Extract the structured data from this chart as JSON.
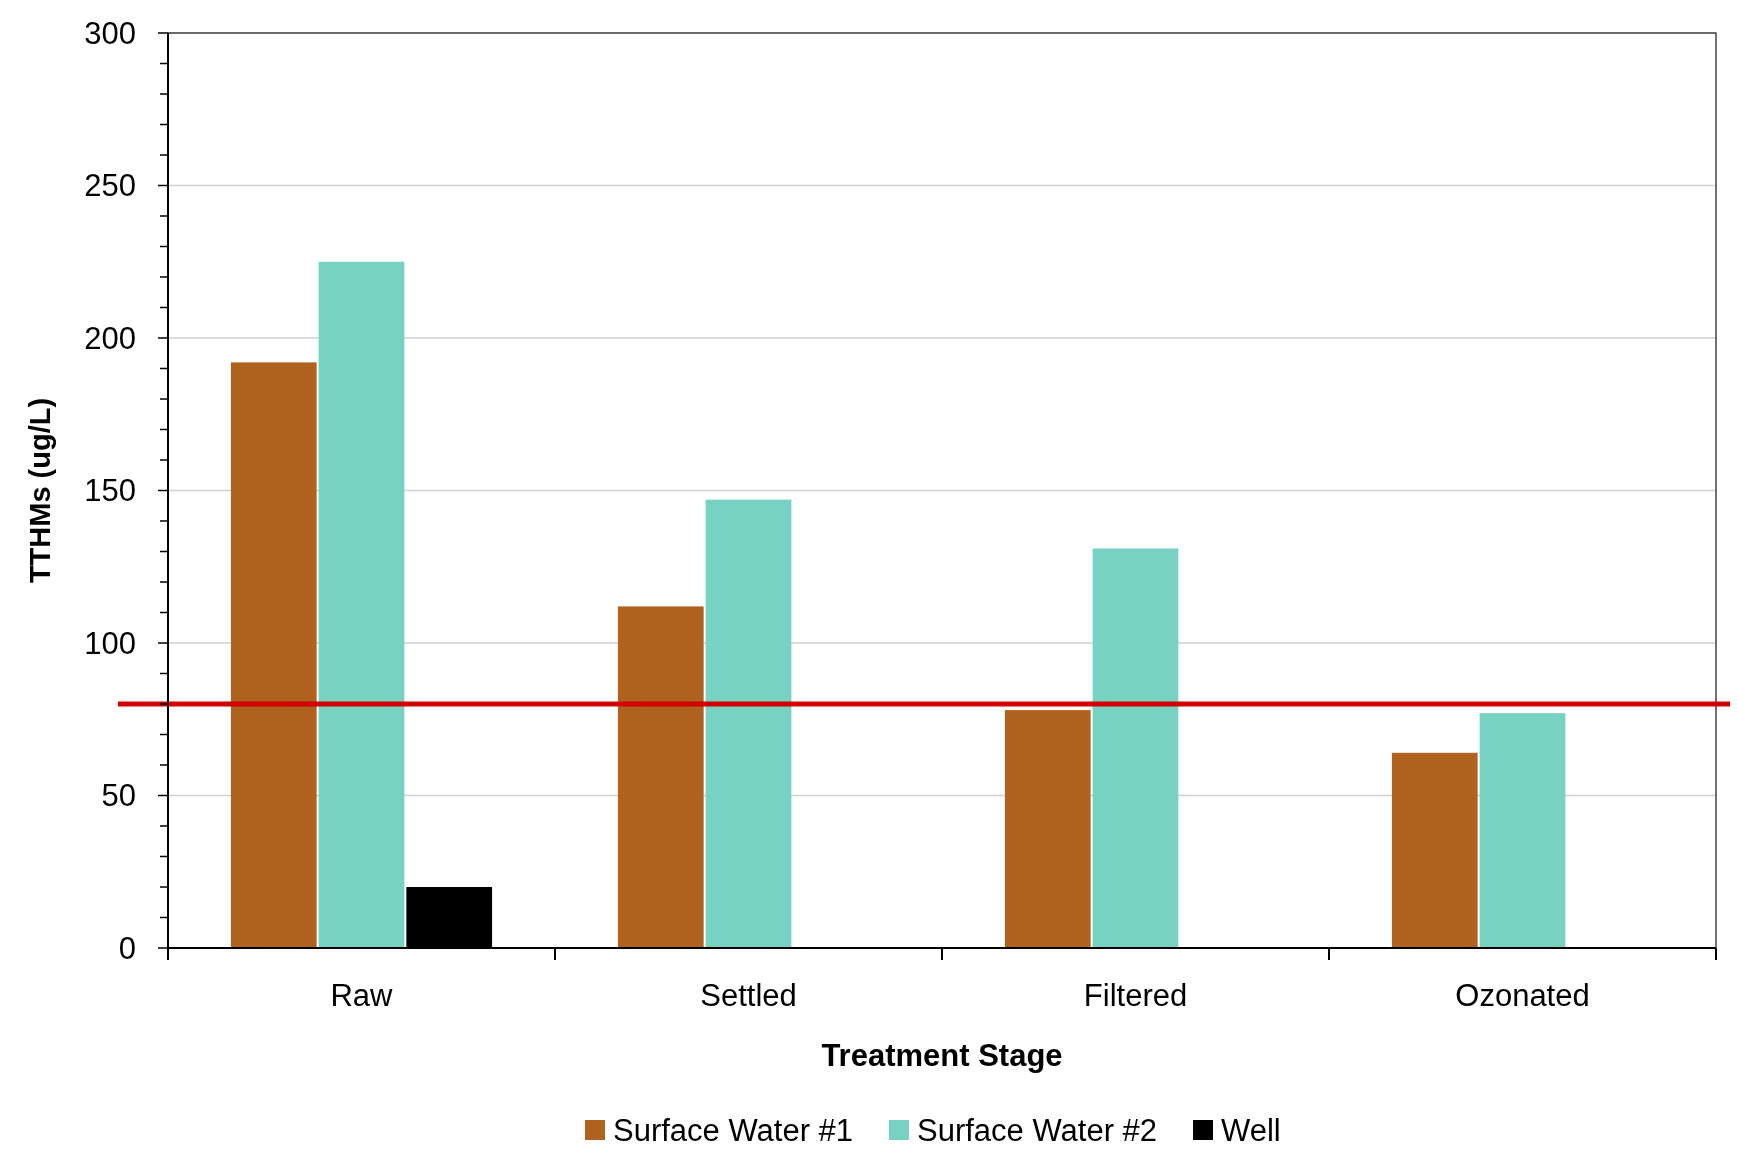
{
  "chart_data": {
    "type": "bar",
    "xlabel": "Treatment Stage",
    "ylabel": "TTHMs (ug/L)",
    "categories": [
      "Raw",
      "Settled",
      "Filtered",
      "Ozonated"
    ],
    "series": [
      {
        "name": "Surface Water #1",
        "color": "#b0621f",
        "values": [
          192,
          112,
          78,
          64
        ]
      },
      {
        "name": "Surface Water #2",
        "color": "#78d2c1",
        "values": [
          225,
          147,
          131,
          77
        ]
      },
      {
        "name": "Well",
        "color": "#000000",
        "values": [
          20,
          null,
          null,
          null
        ]
      }
    ],
    "ylim": [
      0,
      300
    ],
    "yticks": [
      0,
      {
        "value": 10,
        "label": null
      },
      {
        "value": 20,
        "label": null
      },
      {
        "value": 30,
        "label": null
      },
      {
        "value": 40,
        "label": null
      },
      50,
      {
        "value": 60,
        "label": null
      },
      {
        "value": 70,
        "label": null
      },
      {
        "value": 80,
        "label": null
      },
      {
        "value": 90,
        "label": null
      },
      100,
      {
        "value": 110,
        "label": null
      },
      {
        "value": 120,
        "label": null
      },
      {
        "value": 130,
        "label": null
      },
      {
        "value": 140,
        "label": null
      },
      150,
      {
        "value": 160,
        "label": null
      },
      {
        "value": 170,
        "label": null
      },
      {
        "value": 180,
        "label": null
      },
      {
        "value": 190,
        "label": null
      },
      200,
      {
        "value": 210,
        "label": null
      },
      {
        "value": 220,
        "label": null
      },
      {
        "value": 230,
        "label": null
      },
      {
        "value": 240,
        "label": null
      },
      250,
      {
        "value": 260,
        "label": null
      },
      {
        "value": 270,
        "label": null
      },
      {
        "value": 280,
        "label": null
      },
      {
        "value": 290,
        "label": null
      },
      300
    ],
    "grid": "y",
    "legend": "bottom",
    "ref_lines": [
      {
        "axis": "y",
        "value": 80,
        "color": "#d00000",
        "line_style": "solid"
      }
    ]
  }
}
